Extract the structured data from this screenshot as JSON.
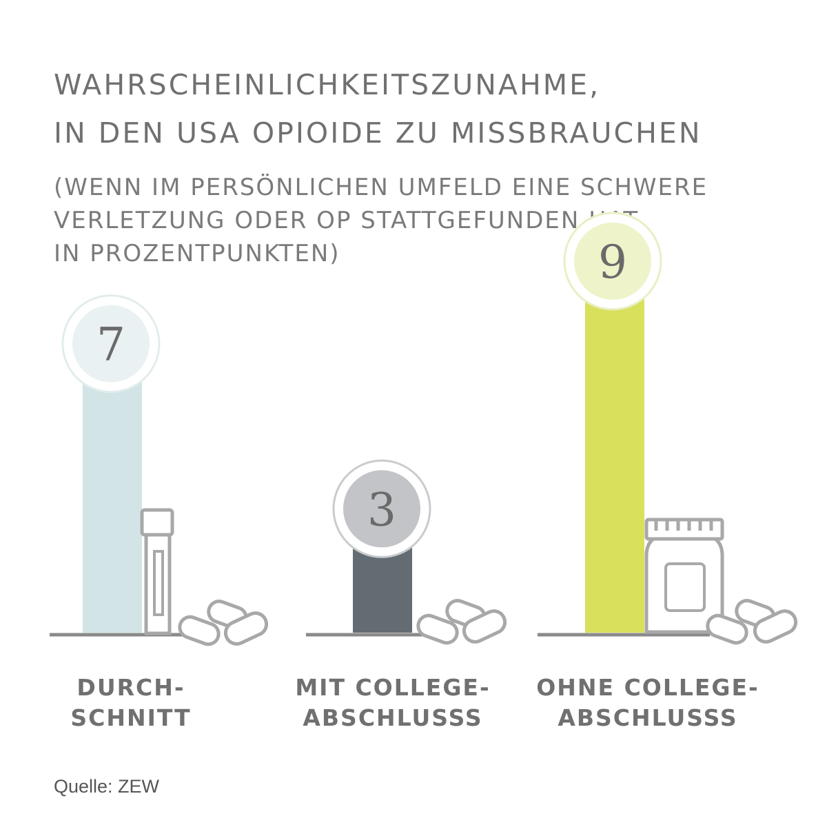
{
  "title_lines": [
    "Wahrscheinlichkeitszunahme,",
    "in den USA Opioide zu missbrauchen"
  ],
  "subtitle_lines": [
    "(wenn im persönlichen Umfeld eine schwere",
    "Verletzung oder OP stattgefunden hat,",
    "in Prozentpunkten)"
  ],
  "source": "Quelle: ZEW",
  "colors": {
    "bar_avg": "#d3e4e6",
    "circle_avg": "#e9f1f3",
    "ring_avg": "#ffffff",
    "bar_college": "#646c73",
    "circle_college": "#c2c4c7",
    "ring_college": "#ffffff",
    "bar_nocollege": "#d8e05c",
    "circle_nocollege": "#eff3c9",
    "ring_nocollege": "#ffffff",
    "text": "#707070",
    "baseline": "#8a8a8a",
    "icon_stroke": "#a8a8a8"
  },
  "chart_data": {
    "type": "bar",
    "title": "Wahrscheinlichkeitszunahme, in den USA Opioide zu missbrauchen",
    "ylabel": "in Prozentpunkten",
    "categories": [
      "Durchschnitt",
      "Mit College-Abschlusss",
      "Ohne College-Abschlusss"
    ],
    "category_label_lines": [
      [
        "Durch-",
        "schnitt"
      ],
      [
        "Mit College-",
        "Abschlusss"
      ],
      [
        "Ohne College-",
        "Abschlusss"
      ]
    ],
    "values": [
      7,
      3,
      9
    ],
    "value_labels": [
      "7",
      "3",
      "9"
    ],
    "ylim": [
      0,
      9
    ],
    "grid": false
  }
}
